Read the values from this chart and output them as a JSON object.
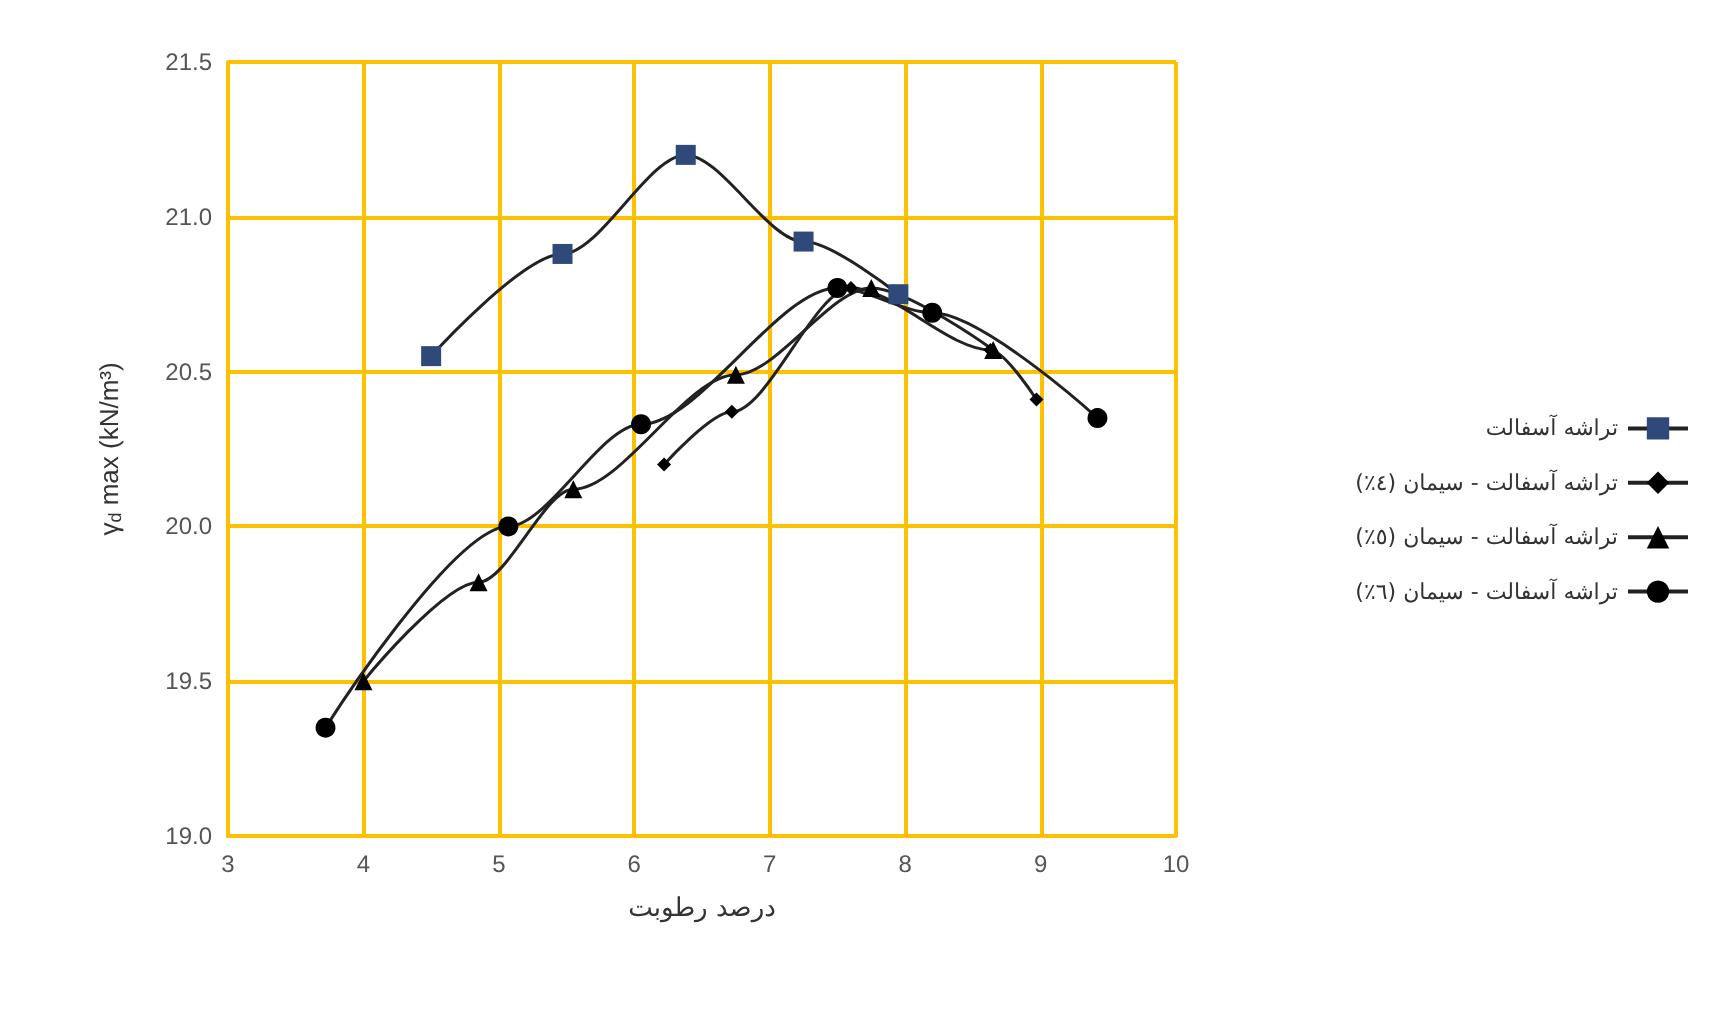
{
  "chart_data": {
    "type": "line",
    "xlabel": "درصد رطوبت",
    "ylabel": "γ$_{d}$ max (kN/m³)",
    "xlim": [
      3,
      10
    ],
    "xticks": [
      3,
      4,
      5,
      6,
      7,
      8,
      9,
      10
    ],
    "ylim": [
      19.0,
      21.5
    ],
    "yticks": [
      {
        "value": 19.0,
        "label": "19.0"
      },
      {
        "value": 19.5,
        "label": "19.5"
      },
      {
        "value": 20.0,
        "label": "20.0"
      },
      {
        "value": 20.5,
        "label": "20.5"
      },
      {
        "value": 21.0,
        "label": "21.0"
      },
      {
        "value": 21.5,
        "label": "21.5"
      }
    ],
    "grid": true,
    "legend": "right",
    "line_style": "solid",
    "series": [
      {
        "name": "تراشه آسفالت",
        "color": "#2f4a7a",
        "marker": "square",
        "x": [
          4.5,
          5.47,
          6.38,
          7.25,
          7.95
        ],
        "values": [
          20.55,
          20.88,
          21.2,
          20.92,
          20.75
        ]
      },
      {
        "name": "تراشه آسفالت - سیمان (٤٪)",
        "color": "#000000",
        "marker": "diamond",
        "x": [
          6.22,
          6.72,
          7.6,
          8.2,
          8.63,
          8.97
        ],
        "values": [
          20.2,
          20.37,
          20.77,
          null,
          20.57,
          20.41
        ]
      },
      {
        "name": "تراشه آسفالت - سیمان (٥٪)",
        "color": "#000000",
        "marker": "triangle",
        "x": [
          4.0,
          4.85,
          5.55,
          6.75,
          7.75,
          8.2,
          8.65
        ],
        "values": [
          19.5,
          19.82,
          20.12,
          20.49,
          20.77,
          null,
          20.57
        ]
      },
      {
        "name": "تراشه آسفالت - سیمان (٦٪)",
        "color": "#000000",
        "marker": "circle",
        "x": [
          3.72,
          5.07,
          6.05,
          7.5,
          8.2,
          9.42
        ],
        "values": [
          19.35,
          20.0,
          20.33,
          20.77,
          20.69,
          20.35
        ]
      }
    ]
  }
}
